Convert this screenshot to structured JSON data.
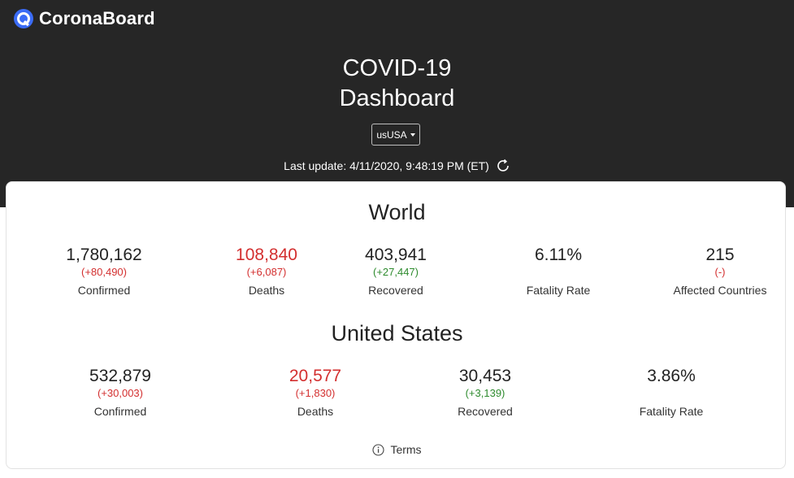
{
  "brand": {
    "name": "CoronaBoard"
  },
  "header": {
    "title_line1": "COVID-19",
    "title_line2": "Dashboard",
    "country_select": "usUSA",
    "last_update": "Last update: 4/11/2020, 9:48:19 PM (ET)"
  },
  "world": {
    "title": "World",
    "confirmed": {
      "value": "1,780,162",
      "delta": "(+80,490)",
      "label": "Confirmed"
    },
    "deaths": {
      "value": "108,840",
      "delta": "(+6,087)",
      "label": "Deaths"
    },
    "recovered": {
      "value": "403,941",
      "delta": "(+27,447)",
      "label": "Recovered"
    },
    "fatality": {
      "value": "6.11%",
      "label": "Fatality Rate"
    },
    "countries": {
      "value": "215",
      "delta": "(-)",
      "label": "Affected Countries"
    }
  },
  "us": {
    "title": "United States",
    "confirmed": {
      "value": "532,879",
      "delta": "(+30,003)",
      "label": "Confirmed"
    },
    "deaths": {
      "value": "20,577",
      "delta": "(+1,830)",
      "label": "Deaths"
    },
    "recovered": {
      "value": "30,453",
      "delta": "(+3,139)",
      "label": "Recovered"
    },
    "fatality": {
      "value": "3.86%",
      "label": "Fatality Rate"
    }
  },
  "footer": {
    "terms": "Terms"
  },
  "colors": {
    "dark_band": "#262626",
    "brand_blue": "#3b6cf6",
    "red": "#d32f2f",
    "green": "#2e8b2e"
  }
}
